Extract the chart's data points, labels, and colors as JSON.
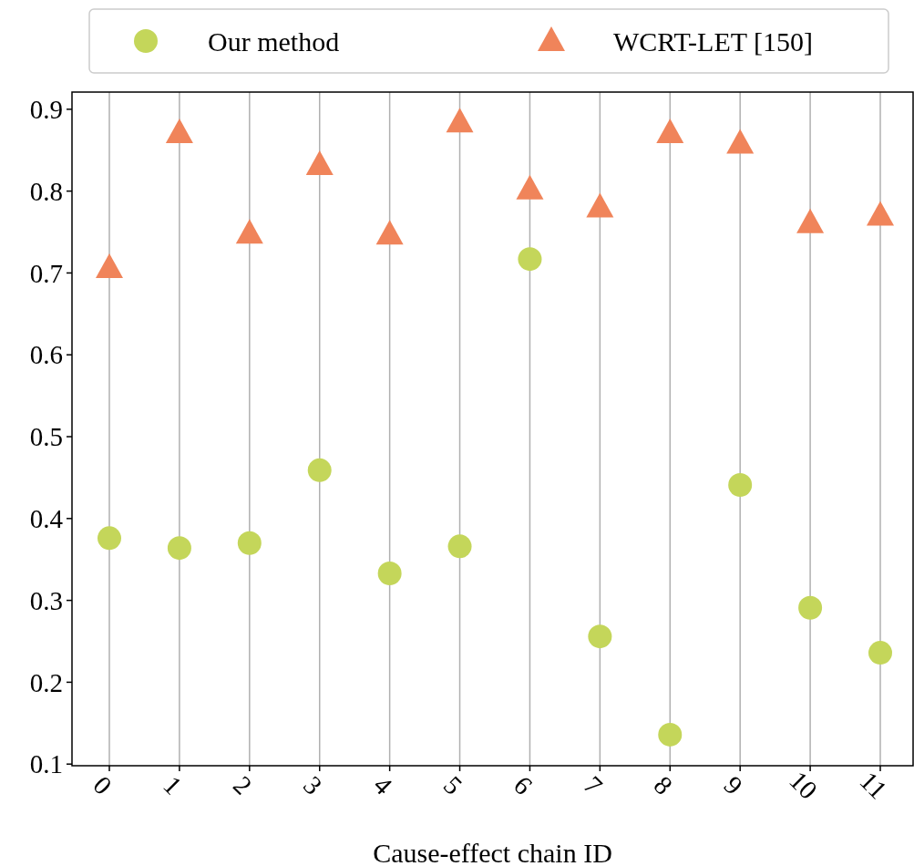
{
  "chart_data": {
    "type": "scatter",
    "xlabel": "Cause-effect chain ID",
    "categories": [
      "0",
      "1",
      "2",
      "3",
      "4",
      "5",
      "6",
      "7",
      "8",
      "9",
      "10",
      "11"
    ],
    "series": [
      {
        "name": "Our method",
        "color": "#c4d65a",
        "marker": "circle",
        "values": [
          0.376,
          0.364,
          0.37,
          0.459,
          0.333,
          0.366,
          0.717,
          0.256,
          0.136,
          0.441,
          0.291,
          0.236
        ]
      },
      {
        "name": "WCRT-LET [150]",
        "color": "#f0845a",
        "marker": "triangle",
        "values": [
          0.706,
          0.871,
          0.748,
          0.832,
          0.747,
          0.884,
          0.802,
          0.78,
          0.871,
          0.858,
          0.761,
          0.77
        ]
      }
    ],
    "ylim": [
      0.098,
      0.921
    ],
    "yticks": [
      0.1,
      0.2,
      0.3,
      0.4,
      0.5,
      0.6,
      0.7,
      0.8,
      0.9
    ],
    "grid": "x",
    "legend": "top"
  }
}
